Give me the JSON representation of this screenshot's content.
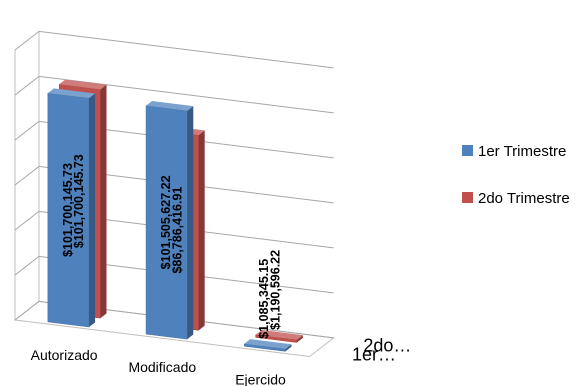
{
  "chart_data": {
    "type": "bar",
    "categories": [
      "Autorizado",
      "Modificado",
      "Ejercido"
    ],
    "series": [
      {
        "name": "1er Trimestre",
        "values": [
          101700145.73,
          101505627.22,
          1085345.15
        ],
        "labels": [
          "$101,700,145.73",
          "$101,505,627.22",
          "$1,085,345.15"
        ],
        "color": "#4F81BD"
      },
      {
        "name": "2do Trimestre",
        "values": [
          101700145.73,
          86786416.91,
          1190596.22
        ],
        "labels": [
          "$101,700,145.73",
          "$86,786,416.91",
          "$1,190,596.22"
        ],
        "color": "#C0504D"
      }
    ],
    "depth_labels": [
      "1er…",
      "2do…"
    ],
    "ylim": [
      0,
      120000000
    ],
    "grid": true,
    "legend": "right"
  }
}
